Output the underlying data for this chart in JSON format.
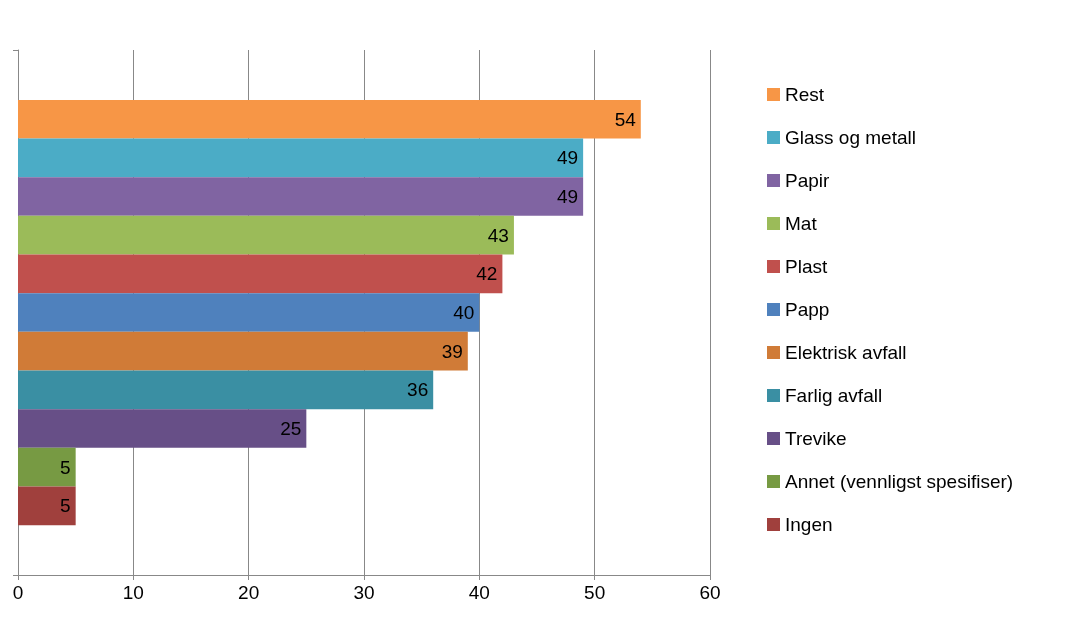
{
  "chart_data": {
    "type": "bar",
    "orientation": "horizontal",
    "categories": [
      null
    ],
    "series": [
      {
        "name": "Rest",
        "color": "#f79646",
        "values": [
          54
        ]
      },
      {
        "name": "Glass og metall",
        "color": "#4bacc6",
        "values": [
          49
        ]
      },
      {
        "name": "Papir",
        "color": "#8064a2",
        "values": [
          49
        ]
      },
      {
        "name": "Mat",
        "color": "#9bbb59",
        "values": [
          43
        ]
      },
      {
        "name": "Plast",
        "color": "#c0504d",
        "values": [
          42
        ]
      },
      {
        "name": "Papp",
        "color": "#4f81bd",
        "values": [
          40
        ]
      },
      {
        "name": "Elektrisk avfall",
        "color": "#d07b37",
        "values": [
          39
        ]
      },
      {
        "name": "Farlig avfall",
        "color": "#3a8fa3",
        "values": [
          36
        ]
      },
      {
        "name": "Trevike",
        "color": "#674f87",
        "values": [
          25
        ]
      },
      {
        "name": "Annet (vennligst spesifiser)",
        "color": "#779a43",
        "values": [
          5
        ]
      },
      {
        "name": "Ingen",
        "color": "#a0403d",
        "values": [
          5
        ]
      }
    ],
    "xlim": [
      0,
      60
    ],
    "xticks": [
      0,
      10,
      20,
      30,
      40,
      50,
      60
    ],
    "grid": "x",
    "legend": "right",
    "data_labels": true
  }
}
